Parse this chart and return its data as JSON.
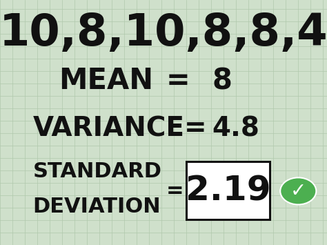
{
  "bg_color": "#cfe0cb",
  "grid_color": "#b0c9ac",
  "text_color": "#111111",
  "line1": "10,8,10,8,8,4",
  "line2_label": "MEAN",
  "line2_eq": "=",
  "line2_val": "8",
  "line3_label": "VARIANCE=",
  "line3_val": "4.8",
  "line4_label1": "STANDARD",
  "line4_label2": "DEVIATION",
  "line4_eq": "=",
  "line4_val": "2.19",
  "box_edge_color": "#111111",
  "box_face_color": "#ffffff",
  "check_color": "#4caf50",
  "check_mark": "✓",
  "figsize": [
    4.74,
    3.55
  ],
  "dpi": 100,
  "font_size_line1": 46,
  "font_size_line2": 30,
  "font_size_line3": 28,
  "font_size_line4_label": 22,
  "font_size_line4_val": 36
}
